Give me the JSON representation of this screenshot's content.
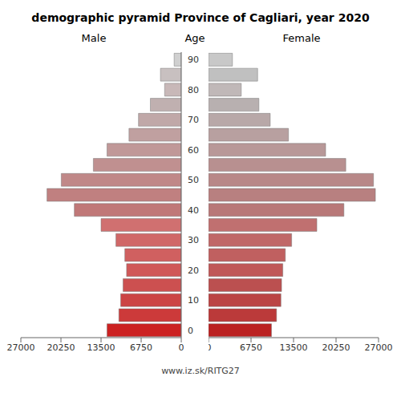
{
  "chart_data": {
    "type": "bar",
    "orientation": "horizontal",
    "title": "demographic pyramid Province of Cagliari, year 2020",
    "ylabel": "Age",
    "annotations": [
      "www.iz.sk/RITG27"
    ],
    "categories": [
      "0",
      null,
      "10",
      null,
      "20",
      null,
      "30",
      null,
      "40",
      null,
      "50",
      null,
      "60",
      null,
      "70",
      null,
      "80",
      null,
      "90"
    ],
    "series": [
      {
        "name": "Male",
        "values": [
          12500,
          10500,
          10200,
          9800,
          9200,
          9500,
          11000,
          13500,
          18000,
          22600,
          20200,
          14800,
          12500,
          8800,
          7200,
          5200,
          2800,
          3500,
          1200
        ],
        "colors": [
          "#cc2222",
          "#cc3a3a",
          "#cc4444",
          "#cc5050",
          "#d05858",
          "#d06060",
          "#d06868",
          "#d07070",
          "#c07878",
          "#c08080",
          "#c08888",
          "#c09090",
          "#c09898",
          "#c0a0a0",
          "#c0a8a8",
          "#c0b0b0",
          "#c8b8b8",
          "#c8c0c0",
          "#d0d0d0"
        ]
      },
      {
        "name": "Female",
        "values": [
          10000,
          10800,
          11500,
          11600,
          11800,
          12200,
          13200,
          17200,
          21500,
          26500,
          26200,
          21800,
          18600,
          12700,
          9800,
          8000,
          5200,
          7800,
          3800
        ],
        "colors": [
          "#bb2222",
          "#bb3a3a",
          "#bb4444",
          "#bb5050",
          "#c05858",
          "#c06060",
          "#c06868",
          "#c07070",
          "#b87878",
          "#b88080",
          "#b88888",
          "#b89090",
          "#b89898",
          "#b8a0a0",
          "#b8a8a8",
          "#b8b0b0",
          "#c0b8b8",
          "#c0c0c0",
          "#c8c8c8"
        ]
      }
    ],
    "xlim": [
      0,
      27000
    ],
    "xticks": [
      0,
      6750,
      13500,
      20250,
      27000
    ],
    "grid": false
  }
}
